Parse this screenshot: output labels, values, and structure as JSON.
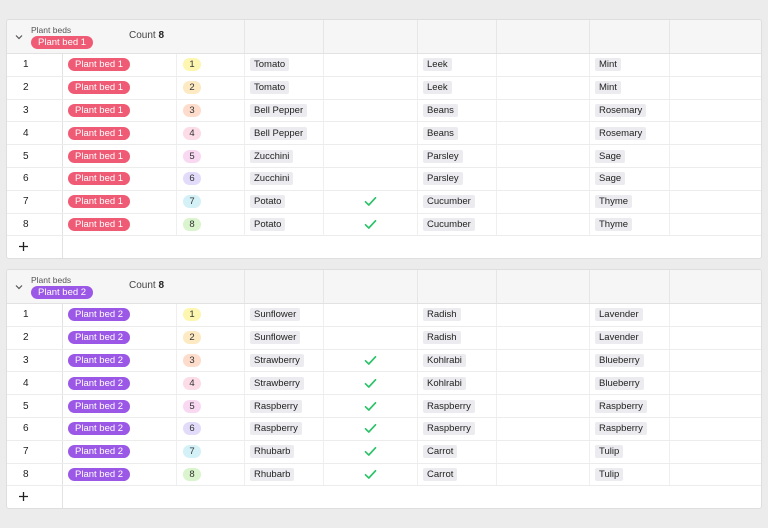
{
  "colors": {
    "bed1": "#ef5b75",
    "bed2": "#9b57e6",
    "check": "#2ec26a",
    "badges": [
      "#fdf6b0",
      "#fde9c2",
      "#fddccc",
      "#fcdce6",
      "#f9d9f2",
      "#e2dcfa",
      "#d4f1f8",
      "#daf4cd"
    ]
  },
  "groups": [
    {
      "field_label": "Plant beds",
      "value": "Plant bed 1",
      "count_label": "Count",
      "count": "8",
      "rows": [
        {
          "n": "1",
          "bed": "Plant bed 1",
          "no": "1",
          "v1": "Tomato",
          "check": false,
          "v2": "Leek",
          "v4": "Mint"
        },
        {
          "n": "2",
          "bed": "Plant bed 1",
          "no": "2",
          "v1": "Tomato",
          "check": false,
          "v2": "Leek",
          "v4": "Mint"
        },
        {
          "n": "3",
          "bed": "Plant bed 1",
          "no": "3",
          "v1": "Bell Pepper",
          "check": false,
          "v2": "Beans",
          "v4": "Rosemary"
        },
        {
          "n": "4",
          "bed": "Plant bed 1",
          "no": "4",
          "v1": "Bell Pepper",
          "check": false,
          "v2": "Beans",
          "v4": "Rosemary"
        },
        {
          "n": "5",
          "bed": "Plant bed 1",
          "no": "5",
          "v1": "Zucchini",
          "check": false,
          "v2": "Parsley",
          "v4": "Sage"
        },
        {
          "n": "6",
          "bed": "Plant bed 1",
          "no": "6",
          "v1": "Zucchini",
          "check": false,
          "v2": "Parsley",
          "v4": "Sage"
        },
        {
          "n": "7",
          "bed": "Plant bed 1",
          "no": "7",
          "v1": "Potato",
          "check": true,
          "v2": "Cucumber",
          "v4": "Thyme"
        },
        {
          "n": "8",
          "bed": "Plant bed 1",
          "no": "8",
          "v1": "Potato",
          "check": true,
          "v2": "Cucumber",
          "v4": "Thyme"
        }
      ]
    },
    {
      "field_label": "Plant beds",
      "value": "Plant bed 2",
      "count_label": "Count",
      "count": "8",
      "rows": [
        {
          "n": "1",
          "bed": "Plant bed 2",
          "no": "1",
          "v1": "Sunflower",
          "check": false,
          "v2": "Radish",
          "v4": "Lavender"
        },
        {
          "n": "2",
          "bed": "Plant bed 2",
          "no": "2",
          "v1": "Sunflower",
          "check": false,
          "v2": "Radish",
          "v4": "Lavender"
        },
        {
          "n": "3",
          "bed": "Plant bed 2",
          "no": "3",
          "v1": "Strawberry",
          "check": true,
          "v2": "Kohlrabi",
          "v4": "Blueberry"
        },
        {
          "n": "4",
          "bed": "Plant bed 2",
          "no": "4",
          "v1": "Strawberry",
          "check": true,
          "v2": "Kohlrabi",
          "v4": "Blueberry"
        },
        {
          "n": "5",
          "bed": "Plant bed 2",
          "no": "5",
          "v1": "Raspberry",
          "check": true,
          "v2": "Raspberry",
          "v4": "Raspberry"
        },
        {
          "n": "6",
          "bed": "Plant bed 2",
          "no": "6",
          "v1": "Raspberry",
          "check": true,
          "v2": "Raspberry",
          "v4": "Raspberry"
        },
        {
          "n": "7",
          "bed": "Plant bed 2",
          "no": "7",
          "v1": "Rhubarb",
          "check": true,
          "v2": "Carrot",
          "v4": "Tulip"
        },
        {
          "n": "8",
          "bed": "Plant bed 2",
          "no": "8",
          "v1": "Rhubarb",
          "check": true,
          "v2": "Carrot",
          "v4": "Tulip"
        }
      ]
    }
  ],
  "icons": {
    "collapse": "chevron-down-icon",
    "add": "plus-icon",
    "check": "checkmark-icon"
  }
}
